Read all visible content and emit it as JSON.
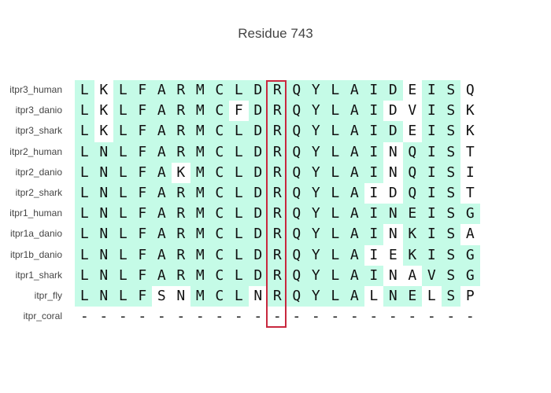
{
  "title": "Residue 743",
  "colors": {
    "conserved": "#c5fbe7",
    "highlight_border": "#c8283e",
    "text": "#444444"
  },
  "highlight_column_index": 10,
  "rows": [
    {
      "name": "itpr3_human",
      "seq": "LKLFARMCLDRQYLAIDEISQ",
      "conserved": "101111111111111110110"
    },
    {
      "name": "itpr3_danio",
      "seq": "LKLFARMCFDRQYLAIDVISK",
      "conserved": "101111110111111100110"
    },
    {
      "name": "itpr3_shark",
      "seq": "LKLFARMCLDRQYLAIDEISK",
      "conserved": "101111111111111110110"
    },
    {
      "name": "itpr2_human",
      "seq": "LNLFARMCLDRQYLAINQIST",
      "conserved": "111111111111111101110"
    },
    {
      "name": "itpr2_danio",
      "seq": "LNLFAKMCLDRQYLAINQISI",
      "conserved": "111110111111111101110"
    },
    {
      "name": "itpr2_shark",
      "seq": "LNLFARMCLDRQYLAIDQIST",
      "conserved": "111111111111111001110"
    },
    {
      "name": "itpr1_human",
      "seq": "LNLFARMCLDRQYLAINEISG",
      "conserved": "111111111111111111111"
    },
    {
      "name": "itpr1a_danio",
      "seq": "LNLFARMCLDRQYLAINKISA",
      "conserved": "111111111111111101110"
    },
    {
      "name": "itpr1b_danio",
      "seq": "LNLFARMCLDRQYLAIEKISG",
      "conserved": "111111111111111001111"
    },
    {
      "name": "itpr1_shark",
      "seq": "LNLFARMCLDRQYLAINAVSG",
      "conserved": "111111111111111100111"
    },
    {
      "name": "itpr_fly",
      "seq": "LNLFSNMCLNRQYLALNELSP",
      "conserved": "111100111011111011010"
    },
    {
      "name": "itpr_coral",
      "seq": "---------------------",
      "conserved": "000000000000000000000"
    }
  ]
}
